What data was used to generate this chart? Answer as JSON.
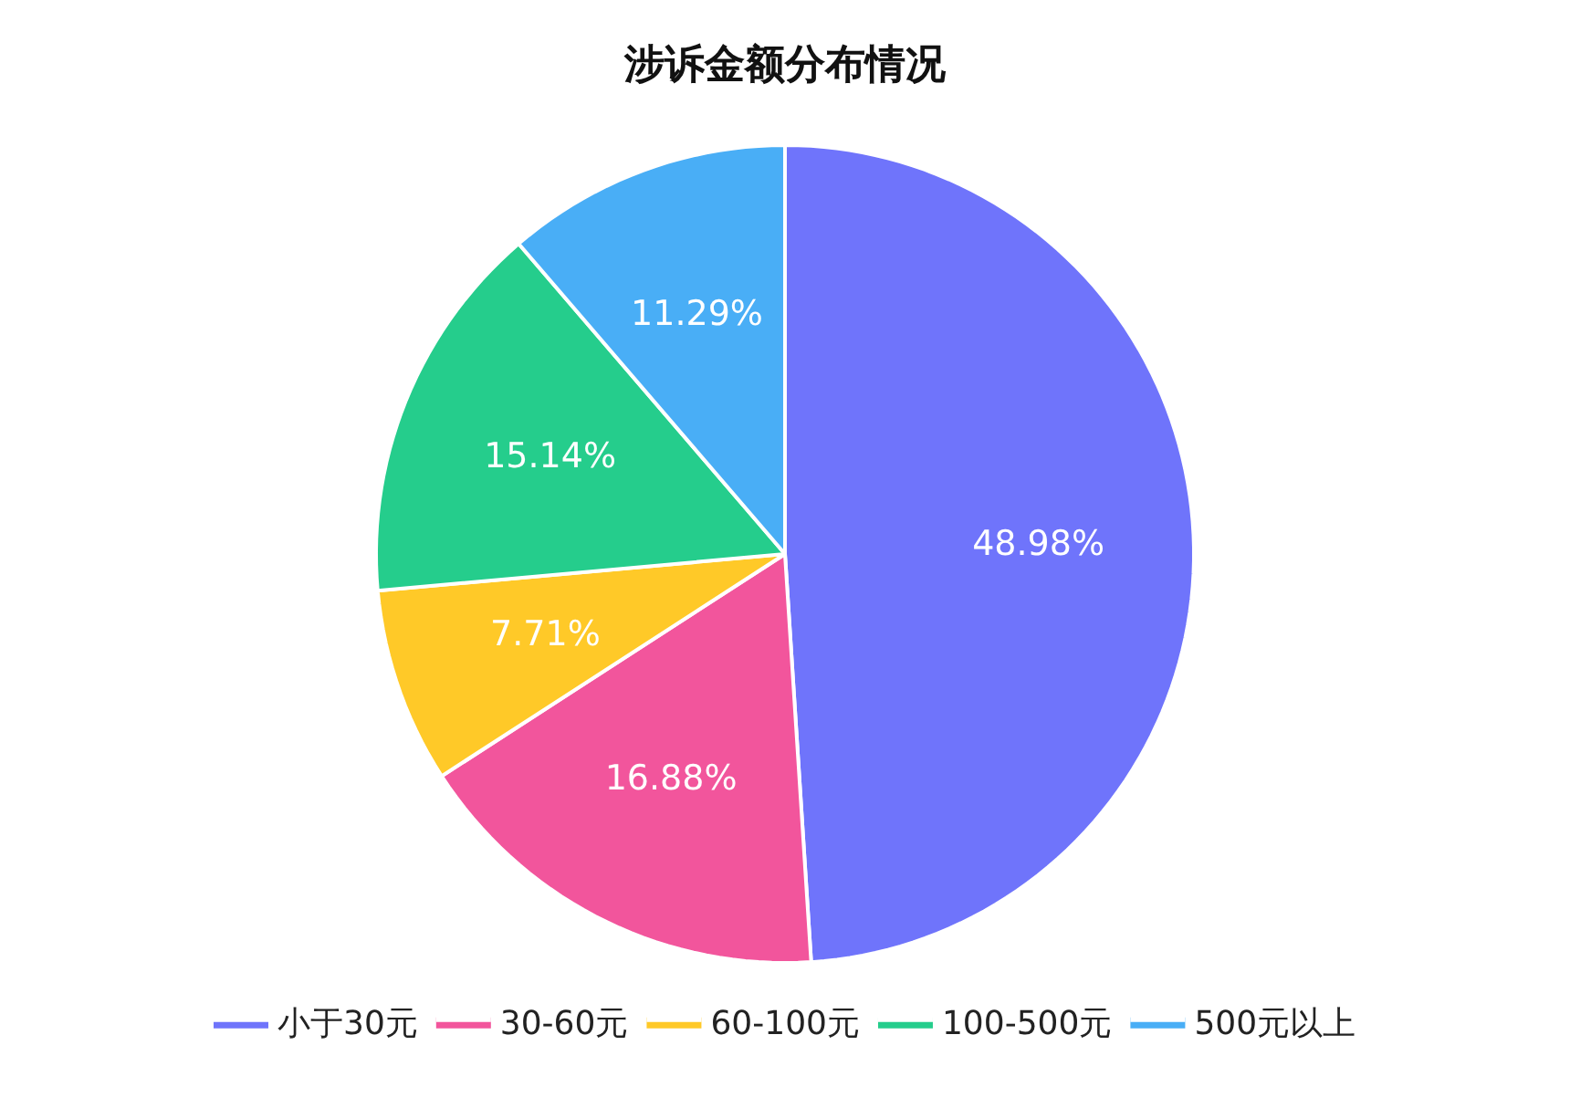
{
  "chart_data": {
    "type": "pie",
    "title": "涉诉金额分布情况",
    "categories": [
      "小于30元",
      "30-60元",
      "60-100元",
      "100-500元",
      "500元以上"
    ],
    "values": [
      48.98,
      16.88,
      7.71,
      15.14,
      11.29
    ],
    "value_labels": [
      "48.98%",
      "16.88%",
      "7.71%",
      "15.14%",
      "11.29%"
    ],
    "colors": [
      "#6f74fb",
      "#f2559c",
      "#ffc928",
      "#25cd8c",
      "#49aef6"
    ],
    "legend": "bottom"
  }
}
